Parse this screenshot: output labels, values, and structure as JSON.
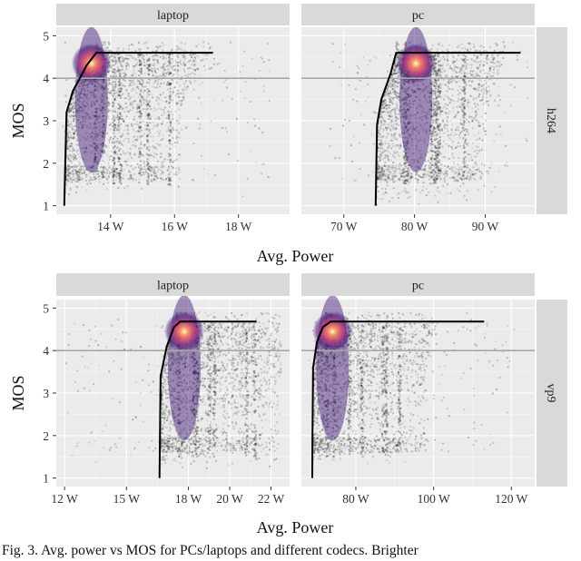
{
  "caption": "Fig. 3.  Avg. power vs MOS for PCs/laptops and different codecs. Brighter",
  "colors": {
    "panel_bg": "#ebebeb",
    "strip_bg": "#d9d9d9",
    "grid": "#ffffff",
    "frontier": "#000000",
    "reference_line": "#a8a8a8",
    "points": "#000000",
    "density_low": "#3b0f70",
    "density_mid": "#b73779",
    "density_high": "#fc8961",
    "density_peak": "#fcfdbf"
  },
  "chart_data": [
    {
      "type": "scatter",
      "codec": "h264",
      "device": "laptop",
      "strip_top": "laptop",
      "strip_right": "h264",
      "xlabel": "Avg. Power",
      "ylabel": "MOS",
      "xlim": [
        12.3,
        19.6
      ],
      "ylim": [
        0.8,
        5.2
      ],
      "xticks": [
        14,
        16,
        18
      ],
      "xtick_labels": [
        "14 W",
        "16 W",
        "18 W"
      ],
      "yticks": [
        1,
        2,
        3,
        4,
        5
      ],
      "ytick_labels": [
        "1",
        "2",
        "3",
        "4",
        "5"
      ],
      "reference_mos": 4,
      "point_cloud_x_range": [
        12.5,
        19.0
      ],
      "point_cloud_y_range": [
        1.2,
        4.85
      ],
      "density_peak": {
        "x": 13.4,
        "y": 4.35
      },
      "frontier": [
        [
          12.55,
          1.0
        ],
        [
          12.58,
          2.0
        ],
        [
          12.62,
          3.2
        ],
        [
          12.82,
          3.7
        ],
        [
          13.25,
          4.3
        ],
        [
          13.55,
          4.6
        ],
        [
          17.2,
          4.6
        ]
      ]
    },
    {
      "type": "scatter",
      "codec": "h264",
      "device": "pc",
      "strip_top": "pc",
      "strip_right": "",
      "xlabel": "Avg. Power",
      "ylabel": "",
      "xlim": [
        64,
        97
      ],
      "ylim": [
        0.8,
        5.2
      ],
      "xticks": [
        70,
        80,
        90
      ],
      "xtick_labels": [
        "70 W",
        "80 W",
        "90 W"
      ],
      "yticks": [
        1,
        2,
        3,
        4,
        5
      ],
      "ytick_labels": [
        "",
        "",
        "",
        "",
        ""
      ],
      "reference_mos": 4,
      "point_cloud_x_range": [
        68.0,
        96.0
      ],
      "point_cloud_y_range": [
        1.0,
        4.85
      ],
      "density_peak": {
        "x": 80.2,
        "y": 4.35
      },
      "frontier": [
        [
          74.5,
          1.0
        ],
        [
          74.6,
          2.0
        ],
        [
          74.7,
          2.9
        ],
        [
          75.3,
          3.5
        ],
        [
          76.6,
          4.1
        ],
        [
          77.4,
          4.6
        ],
        [
          95.0,
          4.6
        ]
      ]
    },
    {
      "type": "scatter",
      "codec": "vp9",
      "device": "laptop",
      "strip_top": "laptop",
      "strip_right": "vp9",
      "xlabel": "Avg. Power",
      "ylabel": "MOS",
      "xlim": [
        11.6,
        22.9
      ],
      "ylim": [
        0.8,
        5.2
      ],
      "xticks": [
        12,
        15,
        18,
        20,
        22
      ],
      "xtick_labels": [
        "12 W",
        "15 W",
        "18 W",
        "20 W",
        "22 W"
      ],
      "yticks": [
        1,
        2,
        3,
        4,
        5
      ],
      "ytick_labels": [
        "1",
        "2",
        "3",
        "4",
        "5"
      ],
      "reference_mos": 4,
      "point_cloud_x_range": [
        12.0,
        22.5
      ],
      "point_cloud_y_range": [
        1.2,
        4.9
      ],
      "density_peak": {
        "x": 17.8,
        "y": 4.45
      },
      "frontier": [
        [
          16.6,
          1.0
        ],
        [
          16.62,
          2.0
        ],
        [
          16.65,
          3.4
        ],
        [
          16.95,
          4.1
        ],
        [
          17.3,
          4.55
        ],
        [
          17.6,
          4.68
        ],
        [
          21.3,
          4.68
        ]
      ]
    },
    {
      "type": "scatter",
      "codec": "vp9",
      "device": "pc",
      "strip_top": "pc",
      "strip_right": "",
      "xlabel": "Avg. Power",
      "ylabel": "",
      "xlim": [
        66,
        126
      ],
      "ylim": [
        0.8,
        5.2
      ],
      "xticks": [
        80,
        100,
        120
      ],
      "xtick_labels": [
        "80 W",
        "100 W",
        "120 W"
      ],
      "yticks": [
        1,
        2,
        3,
        4,
        5
      ],
      "ytick_labels": [
        "",
        "",
        "",
        "",
        ""
      ],
      "reference_mos": 4,
      "point_cloud_x_range": [
        68.0,
        121.0
      ],
      "point_cloud_y_range": [
        1.3,
        4.9
      ],
      "density_peak": {
        "x": 74.0,
        "y": 4.45
      },
      "frontier": [
        [
          68.8,
          1.0
        ],
        [
          68.85,
          2.0
        ],
        [
          69.0,
          3.6
        ],
        [
          70.0,
          4.2
        ],
        [
          71.5,
          4.55
        ],
        [
          73.5,
          4.68
        ],
        [
          113.0,
          4.68
        ]
      ]
    }
  ]
}
